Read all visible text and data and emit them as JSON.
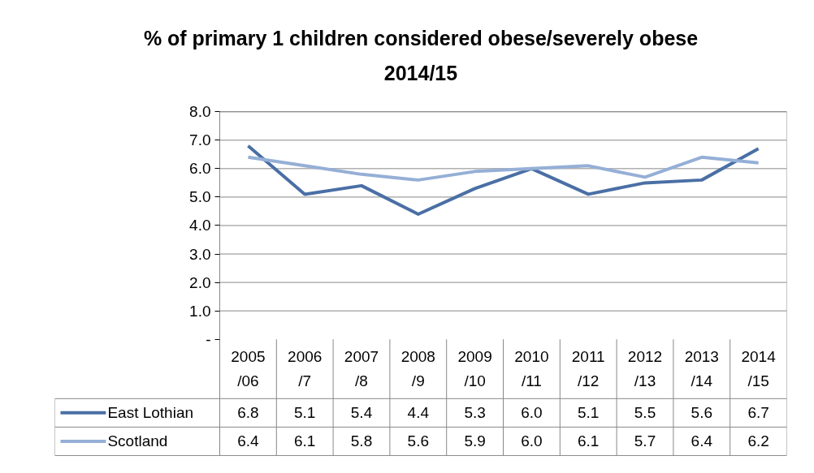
{
  "chart_data": {
    "type": "line",
    "title": "% of primary 1 children considered obese/severely obese 2014/15",
    "categories": [
      "2005/06",
      "2006/7",
      "2007/8",
      "2008/9",
      "2009/10",
      "2010/11",
      "2011/12",
      "2012/13",
      "2013/14",
      "2014/15"
    ],
    "series": [
      {
        "name": "East Lothian",
        "color": "#4a6fa5",
        "values": [
          6.8,
          5.1,
          5.4,
          4.4,
          5.3,
          6.0,
          5.1,
          5.5,
          5.6,
          6.7
        ],
        "value_labels": [
          "6.8",
          "5.1",
          "5.4",
          "4.4",
          "5.3",
          "6.0",
          "5.1",
          "5.5",
          "5.6",
          "6.7"
        ]
      },
      {
        "name": "Scotland",
        "color": "#95afd6",
        "values": [
          6.4,
          6.1,
          5.8,
          5.6,
          5.9,
          6.0,
          6.1,
          5.7,
          6.4,
          6.2
        ],
        "value_labels": [
          "6.4",
          "6.1",
          "5.8",
          "5.6",
          "5.9",
          "6.0",
          "6.1",
          "5.7",
          "6.4",
          "6.2"
        ]
      }
    ],
    "ylim": [
      0,
      8
    ],
    "yticks": [
      {
        "value": 0,
        "label": "-"
      },
      {
        "value": 1,
        "label": "1.0"
      },
      {
        "value": 2,
        "label": "2.0"
      },
      {
        "value": 3,
        "label": "3.0"
      },
      {
        "value": 4,
        "label": "4.0"
      },
      {
        "value": 5,
        "label": "5.0"
      },
      {
        "value": 6,
        "label": "6.0"
      },
      {
        "value": 7,
        "label": "7.0"
      },
      {
        "value": 8,
        "label": "8.0"
      }
    ],
    "grid": "y",
    "legend": "bottom",
    "marker": "none",
    "line_style": "solid"
  }
}
